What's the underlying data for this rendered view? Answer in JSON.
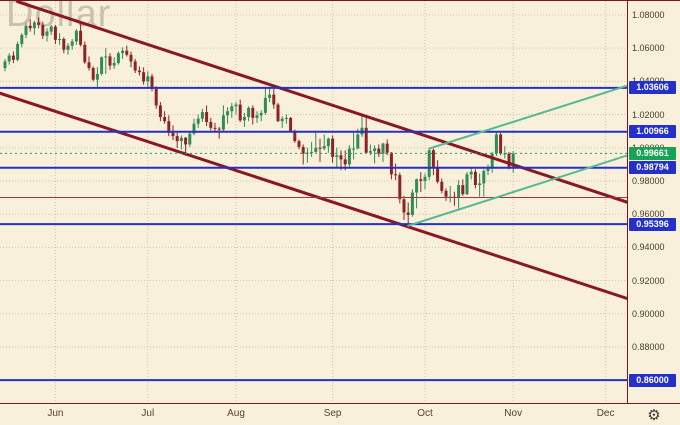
{
  "watermark": "Dollar",
  "icons": {
    "gear": "⚙"
  },
  "colors": {
    "background": "#f8f0da",
    "grid": "#cfc4a6",
    "axis_text": "#473d30",
    "candle_up": "#2f8b57",
    "candle_down": "#8e2323",
    "level_blue": "#2430c8",
    "current_price_green": "#17a254",
    "channel_maroon": "#8a1626",
    "channel_green": "#57b894",
    "thin_red_line": "#a8343c",
    "frame": "#7a1626"
  },
  "chart_data": {
    "type": "candlestick",
    "watermark": "Dollar",
    "x_axis": {
      "label_type": "months",
      "months": [
        {
          "label": "Jun",
          "start_index": 12
        },
        {
          "label": "Jul",
          "start_index": 34
        },
        {
          "label": "Aug",
          "start_index": 55
        },
        {
          "label": "Sep",
          "start_index": 78
        },
        {
          "label": "Oct",
          "start_index": 100
        },
        {
          "label": "Nov",
          "start_index": 121
        },
        {
          "label": "Dec",
          "start_index": 143
        }
      ]
    },
    "y_axis": {
      "ticks": [
        "1.08000",
        "1.06000",
        "1.04000",
        "1.02000",
        "1.00000",
        "0.98000",
        "0.96000",
        "0.94000",
        "0.92000",
        "0.90000",
        "0.88000",
        "0.86000"
      ],
      "visible_range": [
        0.8463,
        1.0884
      ],
      "grid": true
    },
    "levels": [
      {
        "label": "1.03606",
        "price": 1.03606,
        "style": "solid",
        "width": 2,
        "color_key": "level_blue",
        "badge": true
      },
      {
        "label": "1.00966",
        "price": 1.00966,
        "style": "solid",
        "width": 2,
        "color_key": "level_blue",
        "badge": true
      },
      {
        "label": "0.99661",
        "price": 0.99661,
        "style": "dotted",
        "width": 1,
        "color_key": "current_price_green",
        "badge": true
      },
      {
        "label": "0.98794",
        "price": 0.98794,
        "style": "solid",
        "width": 2,
        "color_key": "level_blue",
        "badge": true
      },
      {
        "label": "0.95396",
        "price": 0.95396,
        "style": "solid",
        "width": 2,
        "color_key": "level_blue",
        "badge": true
      },
      {
        "label": "0.86000",
        "price": 0.86,
        "style": "solid",
        "width": 2,
        "color_key": "level_blue",
        "badge": true
      },
      {
        "label": "",
        "price": 0.97,
        "style": "solid",
        "width": 1,
        "color_key": "thin_red_line",
        "badge": false
      }
    ],
    "trendlines": [
      {
        "name": "descending-channel-upper",
        "from_index": 3,
        "from_price": 1.088,
        "to_index": 152,
        "to_price": 0.964,
        "width": 3,
        "color_key": "channel_maroon"
      },
      {
        "name": "descending-channel-lower",
        "from_index": -2,
        "from_price": 1.0335,
        "to_index": 152,
        "to_price": 0.906,
        "width": 3,
        "color_key": "channel_maroon"
      },
      {
        "name": "ascending-channel-upper",
        "from_index": 101,
        "from_price": 0.9995,
        "to_index": 152,
        "to_price": 1.0405,
        "width": 2,
        "color_key": "channel_green"
      },
      {
        "name": "ascending-channel-lower",
        "from_index": 96,
        "from_price": 0.953,
        "to_index": 152,
        "to_price": 0.9985,
        "width": 2,
        "color_key": "channel_green"
      }
    ],
    "candles": [
      [
        1.048,
        1.0535,
        1.046,
        1.052
      ],
      [
        1.052,
        1.057,
        1.05,
        1.0555
      ],
      [
        1.0555,
        1.058,
        1.051,
        1.053
      ],
      [
        1.053,
        1.064,
        1.052,
        1.0625
      ],
      [
        1.0625,
        1.069,
        1.0605,
        1.068
      ],
      [
        1.068,
        1.075,
        1.066,
        1.0735
      ],
      [
        1.0735,
        1.0774,
        1.07,
        1.072
      ],
      [
        1.072,
        1.0765,
        1.068,
        1.0755
      ],
      [
        1.0755,
        1.0786,
        1.072,
        1.074
      ],
      [
        1.074,
        1.076,
        1.0655,
        1.0675
      ],
      [
        1.0675,
        1.072,
        1.064,
        1.07
      ],
      [
        1.07,
        1.074,
        1.068,
        1.073
      ],
      [
        1.073,
        1.074,
        1.0625,
        1.065
      ],
      [
        1.065,
        1.069,
        1.062,
        1.0655
      ],
      [
        1.0655,
        1.0665,
        1.057,
        1.059
      ],
      [
        1.059,
        1.063,
        1.056,
        1.0615
      ],
      [
        1.0615,
        1.0655,
        1.059,
        1.064
      ],
      [
        1.064,
        1.0715,
        1.062,
        1.0705
      ],
      [
        1.0705,
        1.0745,
        1.061,
        1.062
      ],
      [
        1.062,
        1.064,
        1.0505,
        1.0515
      ],
      [
        1.0515,
        1.055,
        1.0465,
        1.048
      ],
      [
        1.048,
        1.049,
        1.04,
        1.041
      ],
      [
        1.041,
        1.0485,
        1.036,
        1.0445
      ],
      [
        1.0445,
        1.055,
        1.0435,
        1.0545
      ],
      [
        1.0545,
        1.06,
        1.0445,
        1.055
      ],
      [
        1.055,
        1.057,
        1.047,
        1.0495
      ],
      [
        1.0495,
        1.0545,
        1.0475,
        1.051
      ],
      [
        1.051,
        1.058,
        1.05,
        1.057
      ],
      [
        1.057,
        1.0605,
        1.0535,
        1.0585
      ],
      [
        1.0585,
        1.0615,
        1.055,
        1.056
      ],
      [
        1.056,
        1.058,
        1.0485,
        1.052
      ],
      [
        1.052,
        1.0535,
        1.045,
        1.0465
      ],
      [
        1.0465,
        1.049,
        1.0435,
        1.0455
      ],
      [
        1.0455,
        1.0485,
        1.038,
        1.04
      ],
      [
        1.04,
        1.046,
        1.0365,
        1.043
      ],
      [
        1.043,
        1.0445,
        1.034,
        1.0355
      ],
      [
        1.0355,
        1.037,
        1.0235,
        1.0255
      ],
      [
        1.0255,
        1.0275,
        1.016,
        1.0185
      ],
      [
        1.0185,
        1.022,
        1.0145,
        1.016
      ],
      [
        1.016,
        1.0195,
        1.007,
        1.009
      ],
      [
        1.009,
        1.0135,
        1.0045,
        1.007
      ],
      [
        1.007,
        1.009,
        0.9998,
        1.004
      ],
      [
        1.004,
        1.0075,
        0.999,
        1.006
      ],
      [
        1.006,
        1.0065,
        0.9952,
        1.002
      ],
      [
        1.002,
        1.01,
        1.0005,
        1.0085
      ],
      [
        1.0085,
        1.0175,
        1.0075,
        1.0145
      ],
      [
        1.0145,
        1.02,
        1.012,
        1.0175
      ],
      [
        1.0175,
        1.0235,
        1.0155,
        1.0215
      ],
      [
        1.0215,
        1.0255,
        1.013,
        1.0155
      ],
      [
        1.0155,
        1.018,
        1.0105,
        1.012
      ],
      [
        1.012,
        1.015,
        1.0095,
        1.0115
      ],
      [
        1.0115,
        1.0125,
        1.0055,
        1.011
      ],
      [
        1.011,
        1.0255,
        1.0095,
        1.0195
      ],
      [
        1.0195,
        1.0245,
        1.0145,
        1.022
      ],
      [
        1.022,
        1.027,
        1.018,
        1.025
      ],
      [
        1.025,
        1.0275,
        1.02,
        1.026
      ],
      [
        1.026,
        1.029,
        1.0155,
        1.0165
      ],
      [
        1.0165,
        1.021,
        1.0125,
        1.0185
      ],
      [
        1.0185,
        1.025,
        1.016,
        1.024
      ],
      [
        1.024,
        1.0255,
        1.014,
        1.018
      ],
      [
        1.018,
        1.022,
        1.015,
        1.0195
      ],
      [
        1.0195,
        1.0225,
        1.016,
        1.021
      ],
      [
        1.021,
        1.0368,
        1.02,
        1.03
      ],
      [
        1.03,
        1.0365,
        1.0275,
        1.032
      ],
      [
        1.032,
        1.0355,
        1.0235,
        1.026
      ],
      [
        1.026,
        1.027,
        1.0155,
        1.016
      ],
      [
        1.016,
        1.019,
        1.012,
        1.0175
      ],
      [
        1.0175,
        1.02,
        1.0145,
        1.018
      ],
      [
        1.018,
        1.0185,
        1.0095,
        1.01
      ],
      [
        1.01,
        1.011,
        1.003,
        1.004
      ],
      [
        1.004,
        1.005,
        0.999,
        1.0005
      ],
      [
        1.0005,
        1.002,
        0.99,
        0.9965
      ],
      [
        0.9965,
        1.0,
        0.991,
        0.997
      ],
      [
        0.997,
        1.0035,
        0.9945,
        0.9975
      ],
      [
        0.9975,
        1.009,
        0.997,
        1.0
      ],
      [
        1.0,
        1.0055,
        0.9915,
        0.9995
      ],
      [
        0.9995,
        1.008,
        0.9985,
        1.001
      ],
      [
        1.001,
        1.006,
        0.997,
        1.0055
      ],
      [
        1.0055,
        1.0075,
        0.991,
        0.9945
      ],
      [
        0.9945,
        1.0,
        0.988,
        0.9955
      ],
      [
        0.9955,
        0.9985,
        0.9865,
        0.993
      ],
      [
        0.993,
        0.9985,
        0.9864,
        0.99
      ],
      [
        0.99,
        1.0015,
        0.9885,
        0.9995
      ],
      [
        0.9995,
        1.009,
        0.993,
        0.9995
      ],
      [
        0.9995,
        1.0115,
        0.999,
        1.008
      ],
      [
        1.008,
        1.0198,
        1.0065,
        1.012
      ],
      [
        1.012,
        1.0185,
        0.9965,
        0.997
      ],
      [
        0.997,
        1.002,
        0.9955,
        0.998
      ],
      [
        0.998,
        1.0015,
        0.9905,
        0.9995
      ],
      [
        0.9995,
        1.002,
        0.9945,
        0.9965
      ],
      [
        0.9965,
        1.003,
        0.9915,
        1.0025
      ],
      [
        1.0025,
        1.005,
        0.9955,
        0.997
      ],
      [
        0.997,
        0.9975,
        0.981,
        0.984
      ],
      [
        0.984,
        0.9905,
        0.9805,
        0.9835
      ],
      [
        0.9835,
        0.985,
        0.9665,
        0.969
      ],
      [
        0.969,
        0.971,
        0.9565,
        0.961
      ],
      [
        0.961,
        0.967,
        0.9536,
        0.9595
      ],
      [
        0.9595,
        0.975,
        0.9585,
        0.973
      ],
      [
        0.973,
        0.9815,
        0.9635,
        0.981
      ],
      [
        0.981,
        0.9853,
        0.9733,
        0.98
      ],
      [
        0.98,
        0.9845,
        0.975,
        0.9825
      ],
      [
        0.9825,
        0.9999,
        0.9805,
        0.9985
      ],
      [
        0.9985,
        0.9995,
        0.9835,
        0.9885
      ],
      [
        0.9885,
        0.9925,
        0.9785,
        0.9795
      ],
      [
        0.9795,
        0.9815,
        0.9725,
        0.974
      ],
      [
        0.974,
        0.9755,
        0.968,
        0.9705
      ],
      [
        0.9705,
        0.977,
        0.967,
        0.9705
      ],
      [
        0.9705,
        0.9735,
        0.965,
        0.97
      ],
      [
        0.97,
        0.9805,
        0.9632,
        0.9775
      ],
      [
        0.9775,
        0.981,
        0.971,
        0.972
      ],
      [
        0.972,
        0.9855,
        0.9715,
        0.984
      ],
      [
        0.984,
        0.9875,
        0.981,
        0.9855
      ],
      [
        0.9855,
        0.987,
        0.9755,
        0.9775
      ],
      [
        0.9775,
        0.9845,
        0.9705,
        0.9785
      ],
      [
        0.9785,
        0.987,
        0.9705,
        0.986
      ],
      [
        0.986,
        0.9899,
        0.9835,
        0.9875
      ],
      [
        0.9875,
        0.9976,
        0.985,
        0.9965
      ],
      [
        0.9965,
        1.0093,
        0.995,
        1.008
      ],
      [
        1.008,
        1.009,
        0.9955,
        0.9965
      ],
      [
        0.9965,
        1.001,
        0.9935,
        0.9965
      ],
      [
        0.9965,
        0.9975,
        0.987,
        0.9885
      ],
      [
        0.9885,
        0.998,
        0.985,
        0.9966
      ]
    ]
  }
}
